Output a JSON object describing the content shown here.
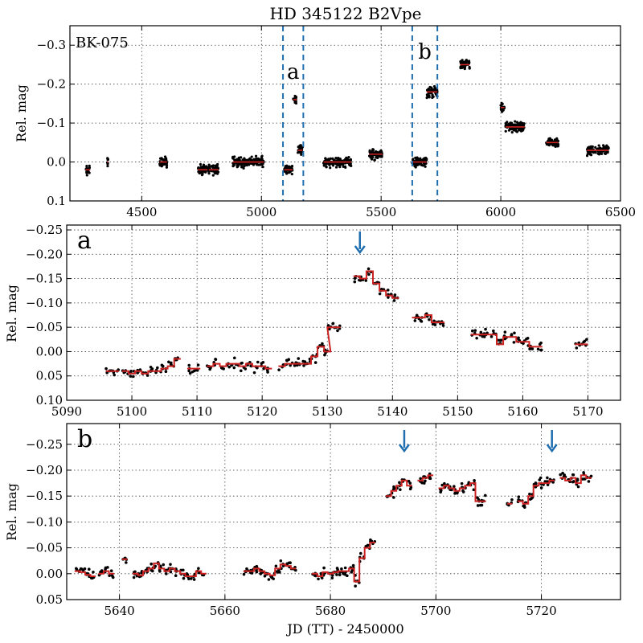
{
  "colors": {
    "points": "#000000",
    "binned": "#cc2222",
    "markers": "#1f6fb0"
  },
  "figure": {
    "title": "HD 345122      B2Vpe",
    "xlabel": "JD (TT) - 2450000",
    "ylabel": "Rel. mag"
  },
  "chart_data": [
    {
      "type": "scatter",
      "panel": "top",
      "star_label": "BK-075",
      "ylabel": "Rel. mag",
      "xlim": [
        4200,
        6500
      ],
      "ylim": [
        0.1,
        -0.35
      ],
      "y_inverted": true,
      "xticks": [
        4500,
        5000,
        5500,
        6000,
        6500
      ],
      "yticks": [
        0.1,
        0.0,
        -0.1,
        -0.2,
        -0.3
      ],
      "ytick_labels": [
        "0.1",
        "0.0",
        "−0.1",
        "−0.2",
        "−0.3"
      ],
      "regions": [
        {
          "label": "a",
          "x": [
            5090,
            5175
          ]
        },
        {
          "label": "b",
          "x": [
            5630,
            5735
          ]
        }
      ],
      "segments": [
        {
          "x": [
            4265,
            4285
          ],
          "y": 0.02
        },
        {
          "x": [
            4355,
            4360
          ],
          "y": 0.0
        },
        {
          "x": [
            4575,
            4605
          ],
          "y": 0.0
        },
        {
          "x": [
            4735,
            4775
          ],
          "y": 0.02
        },
        {
          "x": [
            4780,
            4820
          ],
          "y": 0.02
        },
        {
          "x": [
            4880,
            5010
          ],
          "y": 0.0
        },
        {
          "x": [
            5095,
            5130
          ],
          "y": 0.02
        },
        {
          "x": [
            5133,
            5147
          ],
          "y": -0.16
        },
        {
          "x": [
            5152,
            5172
          ],
          "y": -0.03
        },
        {
          "x": [
            5260,
            5375
          ],
          "y": 0.0
        },
        {
          "x": [
            5450,
            5505
          ],
          "y": -0.02
        },
        {
          "x": [
            5630,
            5690
          ],
          "y": 0.0
        },
        {
          "x": [
            5690,
            5735
          ],
          "y": -0.18
        },
        {
          "x": [
            5830,
            5870
          ],
          "y": -0.25
        },
        {
          "x": [
            6000,
            6015
          ],
          "y": -0.14
        },
        {
          "x": [
            6020,
            6100
          ],
          "y": -0.09
        },
        {
          "x": [
            6190,
            6240
          ],
          "y": -0.05
        },
        {
          "x": [
            6360,
            6450
          ],
          "y": -0.03
        }
      ]
    },
    {
      "type": "scatter",
      "panel": "a",
      "panel_label": "a",
      "ylabel": "Rel. mag",
      "xlim": [
        5090,
        5175
      ],
      "ylim": [
        0.1,
        -0.26
      ],
      "y_inverted": true,
      "xticks": [
        5090,
        5100,
        5110,
        5120,
        5130,
        5140,
        5150,
        5160,
        5170
      ],
      "yticks": [
        0.1,
        0.05,
        0.0,
        -0.05,
        -0.1,
        -0.15,
        -0.2,
        -0.25
      ],
      "ytick_labels": [
        "0.10",
        "0.05",
        "0.00",
        "−0.05",
        "−0.10",
        "−0.15",
        "−0.20",
        "−0.25"
      ],
      "arrows": [
        5135
      ],
      "binned": [
        [
          5096.5,
          0.04
        ],
        [
          5097.5,
          0.04
        ],
        [
          5099,
          0.04
        ],
        [
          5100,
          0.045
        ],
        [
          5101,
          0.04
        ],
        [
          5102,
          0.045
        ],
        [
          5103,
          0.04
        ],
        [
          5104,
          0.04
        ],
        [
          5105,
          0.035
        ],
        [
          5106,
          0.03
        ],
        [
          5107,
          0.015
        ],
        [
          5109,
          0.035
        ],
        [
          5110,
          0.035
        ],
        [
          5112,
          0.03
        ],
        [
          5113,
          0.025
        ],
        [
          5114,
          0.03
        ],
        [
          5115,
          0.025
        ],
        [
          5116,
          0.025
        ],
        [
          5117,
          0.03
        ],
        [
          5118,
          0.025
        ],
        [
          5119,
          0.03
        ],
        [
          5120,
          0.03
        ],
        [
          5121,
          0.035
        ],
        [
          5123,
          0.03
        ],
        [
          5124,
          0.025
        ],
        [
          5125,
          0.025
        ],
        [
          5126,
          0.025
        ],
        [
          5127,
          0.025
        ],
        [
          5128,
          0.01
        ],
        [
          5129,
          -0.01
        ],
        [
          5130,
          0.0
        ],
        [
          5130.5,
          -0.05
        ],
        [
          5131.5,
          -0.05
        ],
        [
          5134.5,
          -0.155
        ],
        [
          5135.5,
          -0.15
        ],
        [
          5136.5,
          -0.165
        ],
        [
          5137.5,
          -0.14
        ],
        [
          5138.5,
          -0.125
        ],
        [
          5139.5,
          -0.115
        ],
        [
          5140.5,
          -0.11
        ],
        [
          5143.5,
          -0.07
        ],
        [
          5144.5,
          -0.07
        ],
        [
          5145.5,
          -0.075
        ],
        [
          5146.5,
          -0.06
        ],
        [
          5147.5,
          -0.06
        ],
        [
          5152.5,
          -0.035
        ],
        [
          5153.5,
          -0.035
        ],
        [
          5154.5,
          -0.035
        ],
        [
          5155.5,
          -0.035
        ],
        [
          5156.5,
          -0.015
        ],
        [
          5157.5,
          -0.03
        ],
        [
          5158.5,
          -0.03
        ],
        [
          5159.5,
          -0.02
        ],
        [
          5160.5,
          -0.02
        ],
        [
          5161.5,
          -0.01
        ],
        [
          5162.5,
          -0.01
        ],
        [
          5168.5,
          -0.015
        ],
        [
          5169.5,
          -0.015
        ]
      ]
    },
    {
      "type": "scatter",
      "panel": "b",
      "panel_label": "b",
      "ylabel": "Rel. mag",
      "xlabel": "JD (TT) - 2450000",
      "xlim": [
        5630,
        5735
      ],
      "ylim": [
        0.05,
        -0.29
      ],
      "y_inverted": true,
      "xticks": [
        5640,
        5660,
        5680,
        5700,
        5720
      ],
      "yticks": [
        0.05,
        0.0,
        -0.05,
        -0.1,
        -0.15,
        -0.2,
        -0.25
      ],
      "ytick_labels": [
        "0.05",
        "0.00",
        "−0.05",
        "−0.10",
        "−0.15",
        "−0.20",
        "−0.25"
      ],
      "arrows": [
        5694,
        5722
      ],
      "binned": [
        [
          5632,
          -0.005
        ],
        [
          5633,
          -0.003
        ],
        [
          5634,
          0.002
        ],
        [
          5635,
          0.005
        ],
        [
          5636.5,
          0.0
        ],
        [
          5637.5,
          -0.005
        ],
        [
          5638.5,
          0.0
        ],
        [
          5641,
          -0.028
        ],
        [
          5643,
          0.0
        ],
        [
          5644,
          0.003
        ],
        [
          5645,
          -0.005
        ],
        [
          5646,
          -0.01
        ],
        [
          5647,
          -0.02
        ],
        [
          5648,
          -0.01
        ],
        [
          5649,
          -0.005
        ],
        [
          5650,
          -0.01
        ],
        [
          5651,
          -0.005
        ],
        [
          5652,
          0.0
        ],
        [
          5653,
          0.005
        ],
        [
          5654,
          0.005
        ],
        [
          5655,
          -0.005
        ],
        [
          5656,
          0.0
        ],
        [
          5664,
          -0.005
        ],
        [
          5665,
          -0.005
        ],
        [
          5666,
          -0.01
        ],
        [
          5667,
          -0.005
        ],
        [
          5668,
          0.0
        ],
        [
          5669,
          0.003
        ],
        [
          5670,
          -0.01
        ],
        [
          5671,
          -0.018
        ],
        [
          5672,
          -0.015
        ],
        [
          5673,
          -0.01
        ],
        [
          5677,
          0.0
        ],
        [
          5678,
          0.005
        ],
        [
          5679,
          -0.003
        ],
        [
          5680,
          0.0
        ],
        [
          5681,
          -0.003
        ],
        [
          5682,
          -0.005
        ],
        [
          5683,
          -0.005
        ],
        [
          5684,
          -0.01
        ],
        [
          5685,
          0.015
        ],
        [
          5686,
          -0.03
        ],
        [
          5687,
          -0.05
        ],
        [
          5688,
          -0.06
        ],
        [
          5691,
          -0.15
        ],
        [
          5692,
          -0.16
        ],
        [
          5693,
          -0.17
        ],
        [
          5694,
          -0.18
        ],
        [
          5695,
          -0.17
        ],
        [
          5697,
          -0.18
        ],
        [
          5698,
          -0.185
        ],
        [
          5699,
          -0.19
        ],
        [
          5701,
          -0.165
        ],
        [
          5702,
          -0.17
        ],
        [
          5703,
          -0.165
        ],
        [
          5704,
          -0.16
        ],
        [
          5705,
          -0.165
        ],
        [
          5706,
          -0.17
        ],
        [
          5707,
          -0.175
        ],
        [
          5708,
          -0.14
        ],
        [
          5709,
          -0.14
        ],
        [
          5714,
          -0.135
        ],
        [
          5716,
          -0.14
        ],
        [
          5717,
          -0.135
        ],
        [
          5718,
          -0.15
        ],
        [
          5719,
          -0.17
        ],
        [
          5720,
          -0.175
        ],
        [
          5721,
          -0.175
        ],
        [
          5722,
          -0.18
        ],
        [
          5724,
          -0.185
        ],
        [
          5725,
          -0.18
        ],
        [
          5726,
          -0.185
        ],
        [
          5727,
          -0.175
        ],
        [
          5728,
          -0.19
        ],
        [
          5729,
          -0.185
        ]
      ]
    }
  ]
}
